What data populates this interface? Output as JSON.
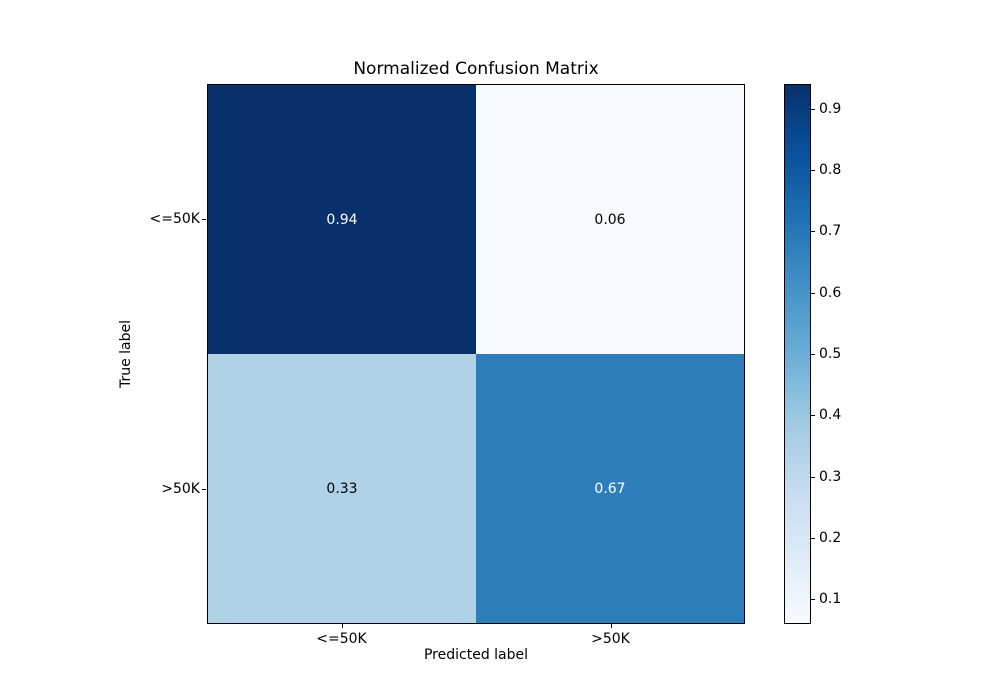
{
  "figure": {
    "background": "#ffffff",
    "axis_color": "#000000"
  },
  "chart_data": {
    "type": "heatmap",
    "title": "Normalized Confusion Matrix",
    "xlabel": "Predicted label",
    "ylabel": "True label",
    "x_tick_labels": [
      "<=50K",
      ">50K"
    ],
    "y_tick_labels": [
      "<=50K",
      ">50K"
    ],
    "matrix": [
      [
        0.94,
        0.06
      ],
      [
        0.33,
        0.67
      ]
    ],
    "cell_labels": [
      [
        "0.94",
        "0.06"
      ],
      [
        "0.33",
        "0.67"
      ]
    ],
    "cell_colors": [
      [
        "#08306b",
        "#f7fbff"
      ],
      [
        "#b0d2e7",
        "#2f7ebc"
      ]
    ],
    "cell_text_colors": [
      [
        "#ffffff",
        "#000000"
      ],
      [
        "#000000",
        "#ffffff"
      ]
    ],
    "colormap": "Blues",
    "grid": false,
    "legend": false,
    "colorbar": {
      "position": "right",
      "vmin": 0.06,
      "vmax": 0.94,
      "tick_labels": [
        "0.1",
        "0.2",
        "0.3",
        "0.4",
        "0.5",
        "0.6",
        "0.7",
        "0.8",
        "0.9"
      ],
      "gradient_stops_bottom_to_top": [
        "#f7fbff",
        "#deebf7",
        "#c6dbef",
        "#9ecae1",
        "#6baed6",
        "#4292c6",
        "#2171b5",
        "#08519c",
        "#08306b"
      ]
    }
  }
}
